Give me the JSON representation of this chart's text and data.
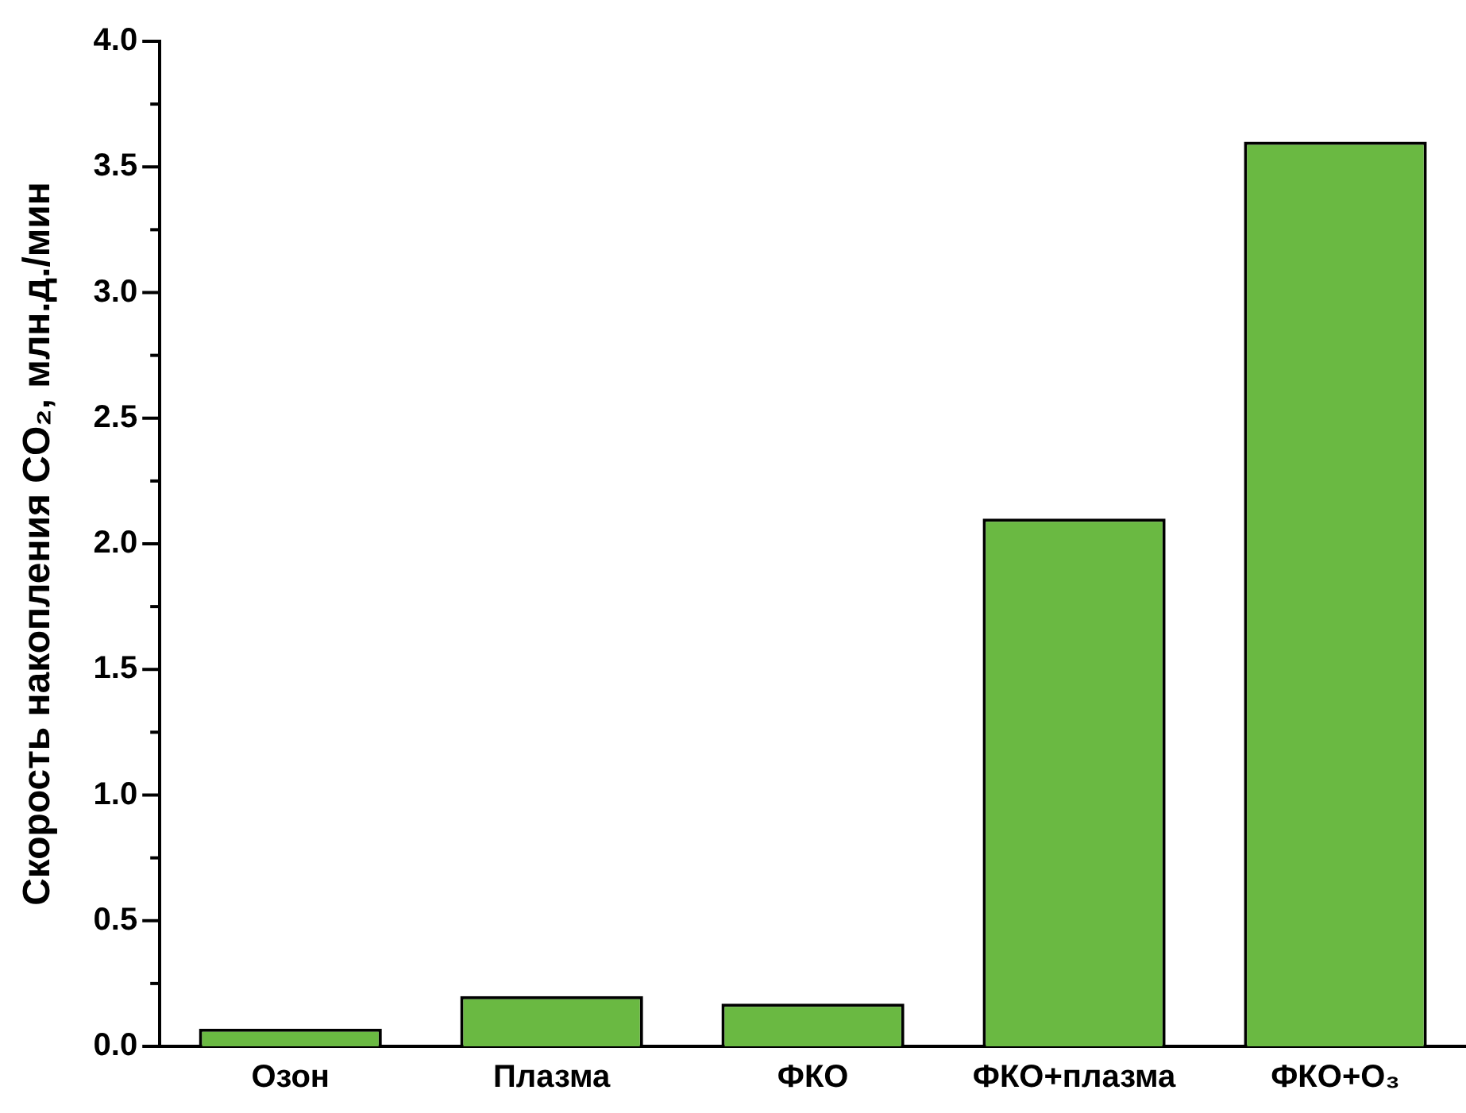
{
  "chart_data": {
    "type": "bar",
    "ylabel": "Скорость накопления CO₂, млн.д./мин",
    "categories": [
      "Озон",
      "Плазма",
      "ФКО",
      "ФКО+плазма",
      "ФКО+O₃"
    ],
    "values": [
      0.07,
      0.2,
      0.17,
      2.1,
      3.6
    ],
    "color": "#6ab942",
    "ylim": [
      0,
      4
    ],
    "yticks": [
      {
        "value": 0,
        "label": "0.0"
      },
      {
        "value": 0.25,
        "label": null
      },
      {
        "value": 0.5,
        "label": "0.5"
      },
      {
        "value": 0.75,
        "label": null
      },
      {
        "value": 1,
        "label": "1.0"
      },
      {
        "value": 1.25,
        "label": null
      },
      {
        "value": 1.5,
        "label": "1.5"
      },
      {
        "value": 1.75,
        "label": null
      },
      {
        "value": 2,
        "label": "2.0"
      },
      {
        "value": 2.25,
        "label": null
      },
      {
        "value": 2.5,
        "label": "2.5"
      },
      {
        "value": 2.75,
        "label": null
      },
      {
        "value": 3,
        "label": "3.0"
      },
      {
        "value": 3.25,
        "label": null
      },
      {
        "value": 3.5,
        "label": "3.5"
      },
      {
        "value": 3.75,
        "label": null
      },
      {
        "value": 4,
        "label": "4.0"
      }
    ],
    "grid": false,
    "legend": false
  }
}
